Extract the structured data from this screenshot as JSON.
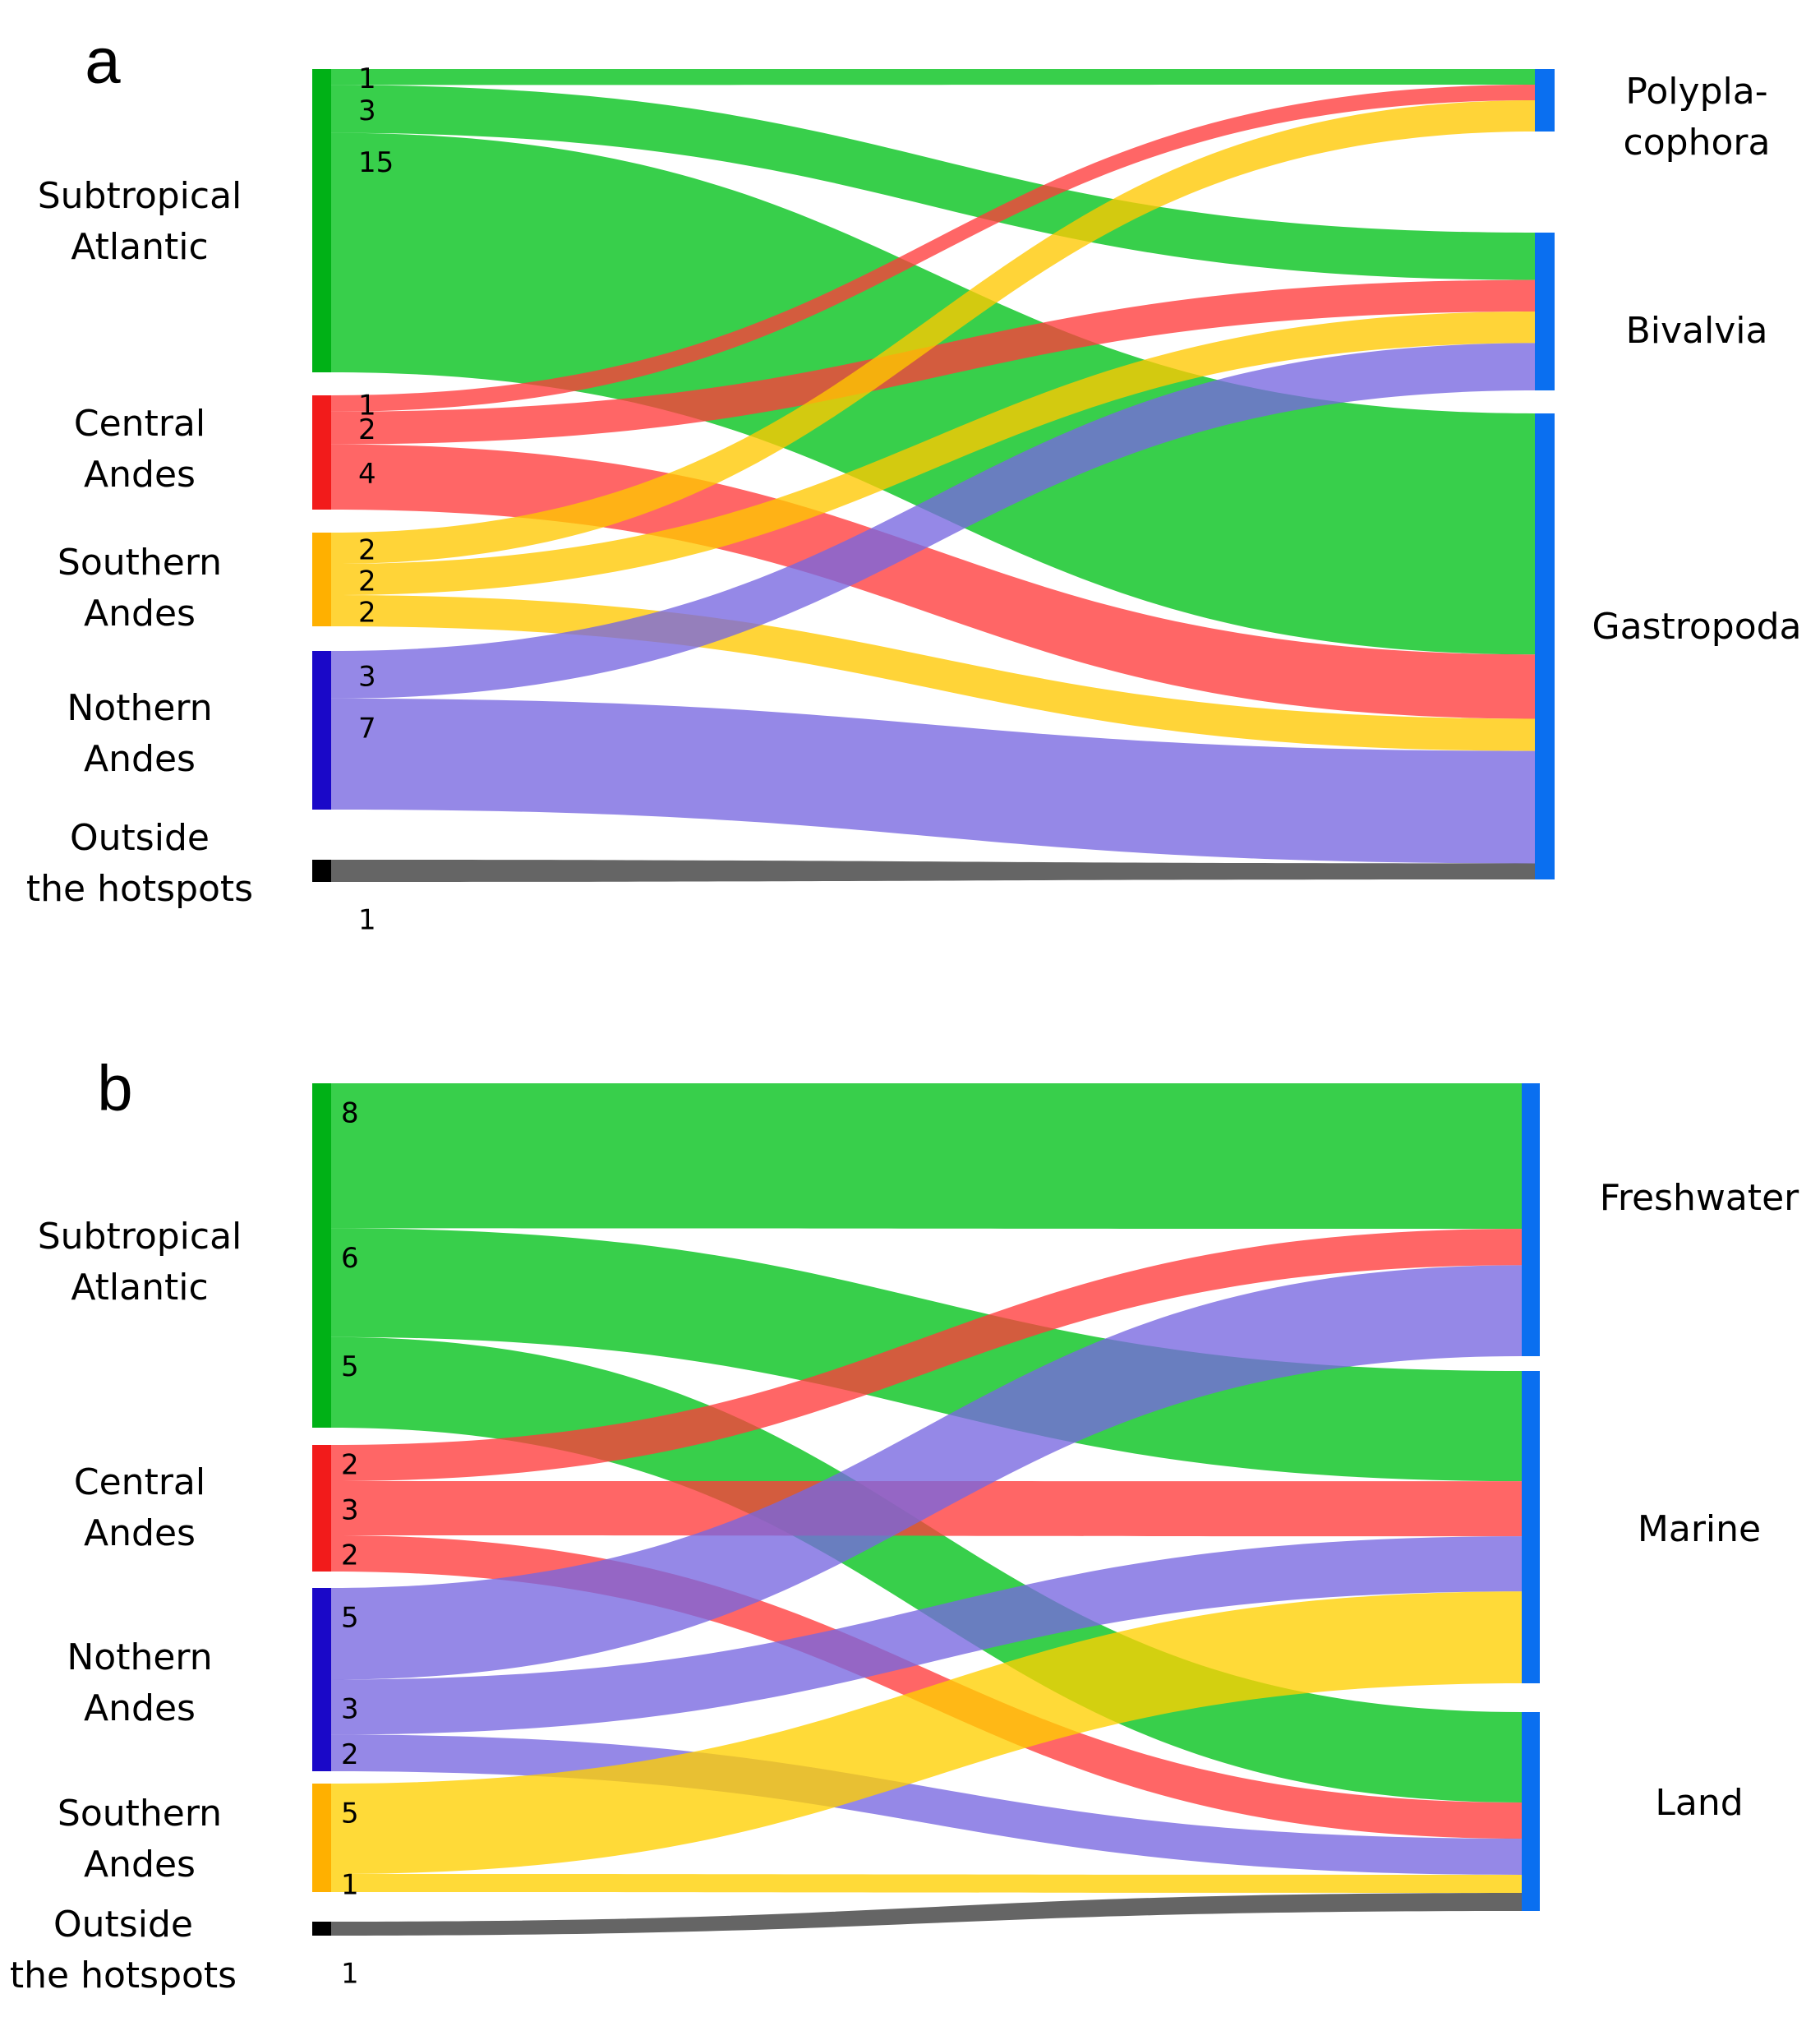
{
  "chart_data": [
    {
      "type": "sankey",
      "panel": "a",
      "colors": {
        "Subtropical Atlantic": "#00c118",
        "Central Andes": "#ff3b3b",
        "Southern Andes": "#ffc800",
        "Nothern Andes": "#7766e0",
        "Outside the hotspots": "#3a3a3a",
        "target": "#0a6ff0"
      },
      "source_node_colors": {
        "Subtropical Atlantic": "#00b116",
        "Central Andes": "#f21b1b",
        "Southern Andes": "#ffb000",
        "Nothern Andes": "#1a08c8",
        "Outside the hotspots": "#000000"
      },
      "sources": [
        {
          "name": "Subtropical Atlantic",
          "lines": [
            "Subtropical",
            "Atlantic"
          ]
        },
        {
          "name": "Central Andes",
          "lines": [
            "Central",
            "Andes"
          ]
        },
        {
          "name": "Southern Andes",
          "lines": [
            "Southern",
            "Andes"
          ]
        },
        {
          "name": "Nothern Andes",
          "lines": [
            "Nothern",
            "Andes"
          ]
        },
        {
          "name": "Outside the hotspots",
          "lines": [
            "Outside",
            "the hotspots"
          ]
        }
      ],
      "targets": [
        {
          "name": "Polyplacophora",
          "lines": [
            "Polypla-",
            "cophora"
          ]
        },
        {
          "name": "Bivalvia",
          "lines": [
            "Bivalvia"
          ]
        },
        {
          "name": "Gastropoda",
          "lines": [
            "Gastropoda"
          ]
        }
      ],
      "flows": [
        {
          "source": "Subtropical Atlantic",
          "target": "Polyplacophora",
          "value": 1
        },
        {
          "source": "Subtropical Atlantic",
          "target": "Bivalvia",
          "value": 3
        },
        {
          "source": "Subtropical Atlantic",
          "target": "Gastropoda",
          "value": 15
        },
        {
          "source": "Central Andes",
          "target": "Polyplacophora",
          "value": 1
        },
        {
          "source": "Central Andes",
          "target": "Bivalvia",
          "value": 2
        },
        {
          "source": "Central Andes",
          "target": "Gastropoda",
          "value": 4
        },
        {
          "source": "Southern Andes",
          "target": "Polyplacophora",
          "value": 2
        },
        {
          "source": "Southern Andes",
          "target": "Bivalvia",
          "value": 2
        },
        {
          "source": "Southern Andes",
          "target": "Gastropoda",
          "value": 2
        },
        {
          "source": "Nothern Andes",
          "target": "Bivalvia",
          "value": 3
        },
        {
          "source": "Nothern Andes",
          "target": "Gastropoda",
          "value": 7
        },
        {
          "source": "Outside the hotspots",
          "target": "Gastropoda",
          "value": 1
        }
      ]
    },
    {
      "type": "sankey",
      "panel": "b",
      "colors": {
        "Subtropical Atlantic": "#00c118",
        "Central Andes": "#ff3b3b",
        "Nothern Andes": "#7766e0",
        "Southern Andes": "#ffd000",
        "Outside the hotspots": "#3a3a3a",
        "target": "#0a6ff0"
      },
      "source_node_colors": {
        "Subtropical Atlantic": "#00b116",
        "Central Andes": "#f21b1b",
        "Nothern Andes": "#1a08c8",
        "Southern Andes": "#ffb000",
        "Outside the hotspots": "#000000"
      },
      "sources": [
        {
          "name": "Subtropical Atlantic",
          "lines": [
            "Subtropical",
            "Atlantic"
          ]
        },
        {
          "name": "Central Andes",
          "lines": [
            "Central",
            "Andes"
          ]
        },
        {
          "name": "Nothern Andes",
          "lines": [
            "Nothern",
            "Andes"
          ]
        },
        {
          "name": "Southern Andes",
          "lines": [
            "Southern",
            "Andes"
          ]
        },
        {
          "name": "Outside the hotspots",
          "lines": [
            "Outside",
            "the hotspots"
          ]
        }
      ],
      "targets": [
        {
          "name": "Freshwater",
          "lines": [
            "Freshwater"
          ]
        },
        {
          "name": "Marine",
          "lines": [
            "Marine"
          ]
        },
        {
          "name": "Land",
          "lines": [
            "Land"
          ]
        }
      ],
      "flows": [
        {
          "source": "Subtropical Atlantic",
          "target": "Freshwater",
          "value": 8
        },
        {
          "source": "Subtropical Atlantic",
          "target": "Marine",
          "value": 6
        },
        {
          "source": "Subtropical Atlantic",
          "target": "Land",
          "value": 5
        },
        {
          "source": "Central Andes",
          "target": "Freshwater",
          "value": 2
        },
        {
          "source": "Central Andes",
          "target": "Marine",
          "value": 3
        },
        {
          "source": "Central Andes",
          "target": "Land",
          "value": 2
        },
        {
          "source": "Nothern Andes",
          "target": "Freshwater",
          "value": 5
        },
        {
          "source": "Nothern Andes",
          "target": "Marine",
          "value": 3
        },
        {
          "source": "Nothern Andes",
          "target": "Land",
          "value": 2
        },
        {
          "source": "Southern Andes",
          "target": "Marine",
          "value": 5
        },
        {
          "source": "Southern Andes",
          "target": "Land",
          "value": 1
        },
        {
          "source": "Outside the hotspots",
          "target": "Land",
          "value": 1
        }
      ]
    }
  ]
}
